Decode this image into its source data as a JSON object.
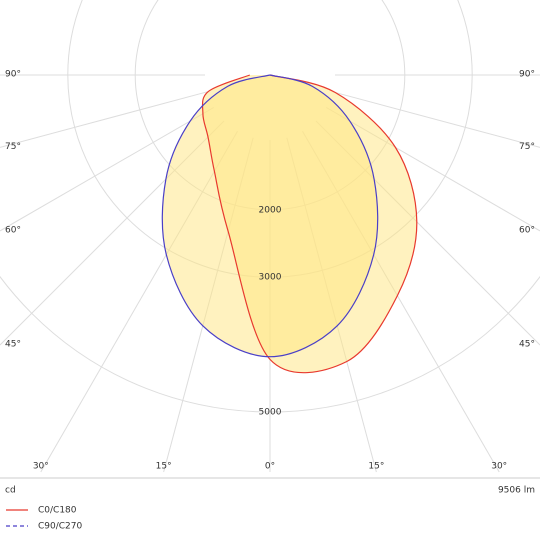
{
  "chart_data": {
    "type": "polar",
    "x": [
      -90,
      -75,
      -60,
      -45,
      -30,
      -15,
      0,
      15,
      30,
      45,
      60,
      75,
      90
    ],
    "series": [
      {
        "name": "C0/C180",
        "color": "#e8392e",
        "dashed": false,
        "values": [
          300,
          950,
          1150,
          1300,
          1650,
          2400,
          4220,
          4400,
          3780,
          3080,
          2150,
          1000,
          0
        ]
      },
      {
        "name": "C90/C270",
        "color": "#4a3fc7",
        "dashed": true,
        "values": [
          0,
          652,
          1367,
          2185,
          3077,
          3853,
          4180,
          3853,
          3077,
          2185,
          1367,
          652,
          0
        ]
      }
    ],
    "fill": "#ffe680",
    "ylim": [
      0,
      5000
    ],
    "yticks": [
      2000,
      3000,
      5000
    ],
    "xticks": [
      {
        "value": -90,
        "label": "90°"
      },
      {
        "value": -75,
        "label": "75°"
      },
      {
        "value": -60,
        "label": "60°"
      },
      {
        "value": -45,
        "label": "45°"
      },
      {
        "value": -30,
        "label": "30°"
      },
      {
        "value": -15,
        "label": "15°"
      },
      {
        "value": 0,
        "label": "0°"
      },
      {
        "value": 15,
        "label": "15°"
      },
      {
        "value": 30,
        "label": "30°"
      },
      {
        "value": 45,
        "label": "45°"
      },
      {
        "value": 60,
        "label": "60°"
      },
      {
        "value": 75,
        "label": "75°"
      },
      {
        "value": 90,
        "label": "90°"
      }
    ],
    "unit_label": "cd",
    "flux_label": "9506 lm"
  }
}
